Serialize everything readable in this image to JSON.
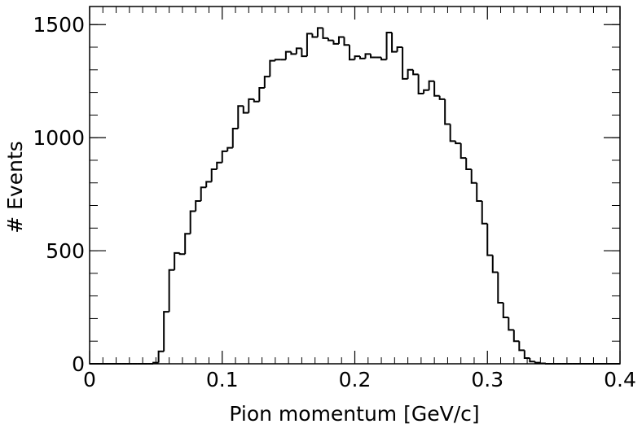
{
  "chart_data": {
    "type": "histogram",
    "x_label": "Pion momentum [GeV/c]",
    "y_label": "# Events",
    "color": "#000000",
    "bins": [
      0,
      0.004,
      0.008,
      0.012,
      0.016,
      0.02,
      0.024,
      0.028,
      0.032,
      0.036,
      0.04,
      0.044,
      0.048,
      0.052,
      0.056,
      0.06,
      0.064,
      0.068,
      0.072,
      0.076,
      0.08,
      0.084,
      0.088,
      0.092,
      0.096,
      0.1,
      0.104,
      0.108,
      0.112,
      0.116,
      0.12,
      0.124,
      0.128,
      0.132,
      0.136,
      0.14,
      0.144,
      0.148,
      0.152,
      0.156,
      0.16,
      0.164,
      0.168,
      0.172,
      0.176,
      0.18,
      0.184,
      0.188,
      0.192,
      0.196,
      0.2,
      0.204,
      0.208,
      0.212,
      0.216,
      0.22,
      0.224,
      0.228,
      0.232,
      0.236,
      0.24,
      0.244,
      0.248,
      0.252,
      0.256,
      0.26,
      0.264,
      0.268,
      0.272,
      0.276,
      0.28,
      0.284,
      0.288,
      0.292,
      0.296,
      0.3,
      0.304,
      0.308,
      0.312,
      0.316,
      0.32,
      0.324,
      0.328,
      0.332,
      0.336,
      0.34,
      0.344,
      0.348,
      0.352,
      0.356,
      0.36,
      0.364,
      0.368,
      0.372,
      0.376,
      0.38,
      0.384,
      0.388,
      0.392,
      0.396,
      0.4
    ],
    "counts": [
      0,
      0,
      0,
      0,
      0,
      0,
      0,
      0,
      0,
      0,
      0,
      0,
      5,
      55,
      230,
      415,
      490,
      485,
      575,
      675,
      720,
      780,
      805,
      860,
      890,
      940,
      955,
      1040,
      1140,
      1110,
      1170,
      1160,
      1220,
      1270,
      1340,
      1345,
      1345,
      1380,
      1370,
      1395,
      1360,
      1460,
      1445,
      1485,
      1440,
      1430,
      1415,
      1445,
      1410,
      1345,
      1360,
      1350,
      1370,
      1355,
      1355,
      1345,
      1465,
      1380,
      1400,
      1260,
      1300,
      1280,
      1195,
      1210,
      1250,
      1185,
      1170,
      1060,
      985,
      975,
      910,
      860,
      800,
      720,
      620,
      480,
      405,
      270,
      205,
      150,
      100,
      60,
      25,
      10,
      5,
      2,
      0,
      0,
      0,
      0,
      0,
      0,
      0,
      0,
      0,
      0,
      0,
      0,
      0,
      0
    ],
    "xlim": [
      0,
      0.4
    ],
    "xticks": [
      0,
      0.1,
      0.2,
      0.3,
      0.4
    ],
    "ylim": [
      0,
      1580
    ],
    "yticks": [
      0,
      500,
      1000,
      1500
    ]
  }
}
